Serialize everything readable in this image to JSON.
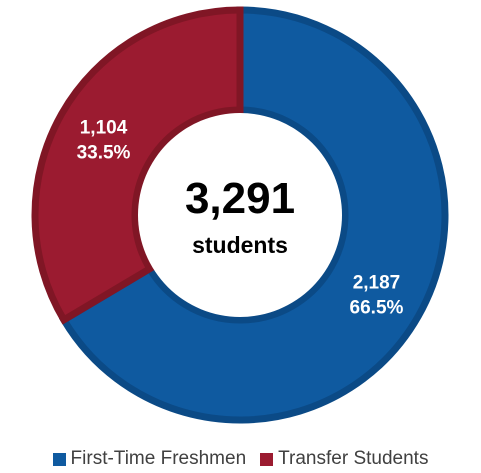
{
  "chart_data": {
    "type": "pie",
    "style": "donut",
    "center": {
      "total": "3,291",
      "unit": "students"
    },
    "slices": [
      {
        "name": "First-Time Freshmen",
        "value": 2187,
        "value_label": "2,187",
        "percent_label": "66.5%",
        "color": "#0F5AA0",
        "border_color": "#0B4A86"
      },
      {
        "name": "Transfer Students",
        "value": 1104,
        "value_label": "1,104",
        "percent_label": "33.5%",
        "color": "#9B1B30",
        "border_color": "#801625"
      }
    ],
    "start_angle_deg": 0,
    "direction": "clockwise",
    "legend_position": "bottom"
  }
}
